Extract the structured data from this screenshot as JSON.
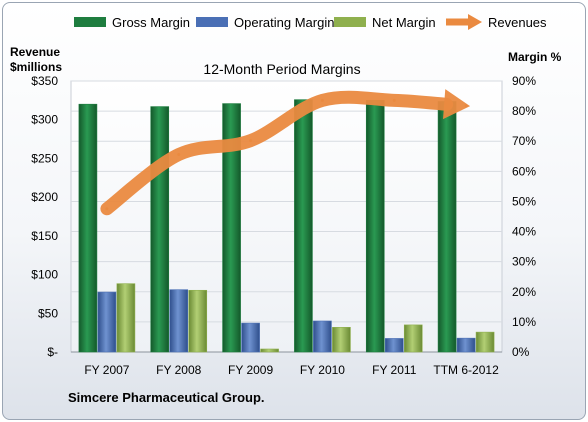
{
  "chart_data": {
    "type": "bar",
    "title": "12-Month Period Margins",
    "footer": "Simcere Pharmaceutical  Group.",
    "categories": [
      "FY 2007",
      "FY 2008",
      "FY 2009",
      "FY 2010",
      "FY 2011",
      "TTM 6-2012"
    ],
    "left_axis": {
      "label_line1": "Revenue",
      "label_line2": "$millions",
      "range": [
        0,
        350
      ],
      "ticks": [
        {
          "value": 0,
          "label": "$-"
        },
        {
          "value": 50,
          "label": "$50"
        },
        {
          "value": 100,
          "label": "$100"
        },
        {
          "value": 150,
          "label": "$150"
        },
        {
          "value": 200,
          "label": "$200"
        },
        {
          "value": 250,
          "label": "$250"
        },
        {
          "value": 300,
          "label": "$300"
        },
        {
          "value": 350,
          "label": "$350"
        }
      ]
    },
    "right_axis": {
      "label": "Margin %",
      "range": [
        0,
        90
      ],
      "ticks": [
        {
          "value": 0,
          "label": "0%"
        },
        {
          "value": 10,
          "label": "10%"
        },
        {
          "value": 20,
          "label": "20%"
        },
        {
          "value": 30,
          "label": "30%"
        },
        {
          "value": 40,
          "label": "40%"
        },
        {
          "value": 50,
          "label": "50%"
        },
        {
          "value": 60,
          "label": "60%"
        },
        {
          "value": 70,
          "label": "70%"
        },
        {
          "value": 80,
          "label": "80%"
        },
        {
          "value": 90,
          "label": "90%"
        }
      ]
    },
    "grid": true,
    "legend_position": "top",
    "series": [
      {
        "name": "Gross Margin",
        "kind": "bar",
        "axis": "right",
        "color": "#1e7d3f",
        "values": [
          82.3,
          81.5,
          82.5,
          83.8,
          83.6,
          83.2
        ]
      },
      {
        "name": "Operating Margin",
        "kind": "bar",
        "axis": "right",
        "color": "#4a6fb5",
        "values": [
          19.9,
          20.7,
          9.6,
          10.3,
          4.5,
          4.6
        ]
      },
      {
        "name": "Net Margin",
        "kind": "bar",
        "axis": "right",
        "color": "#8fb04e",
        "values": [
          22.7,
          20.5,
          1.0,
          8.2,
          9.0,
          6.6
        ]
      },
      {
        "name": "Revenues",
        "kind": "line",
        "axis": "left",
        "color": "#ea8a40",
        "values": [
          185,
          255,
          273,
          325,
          325,
          318
        ]
      }
    ]
  }
}
